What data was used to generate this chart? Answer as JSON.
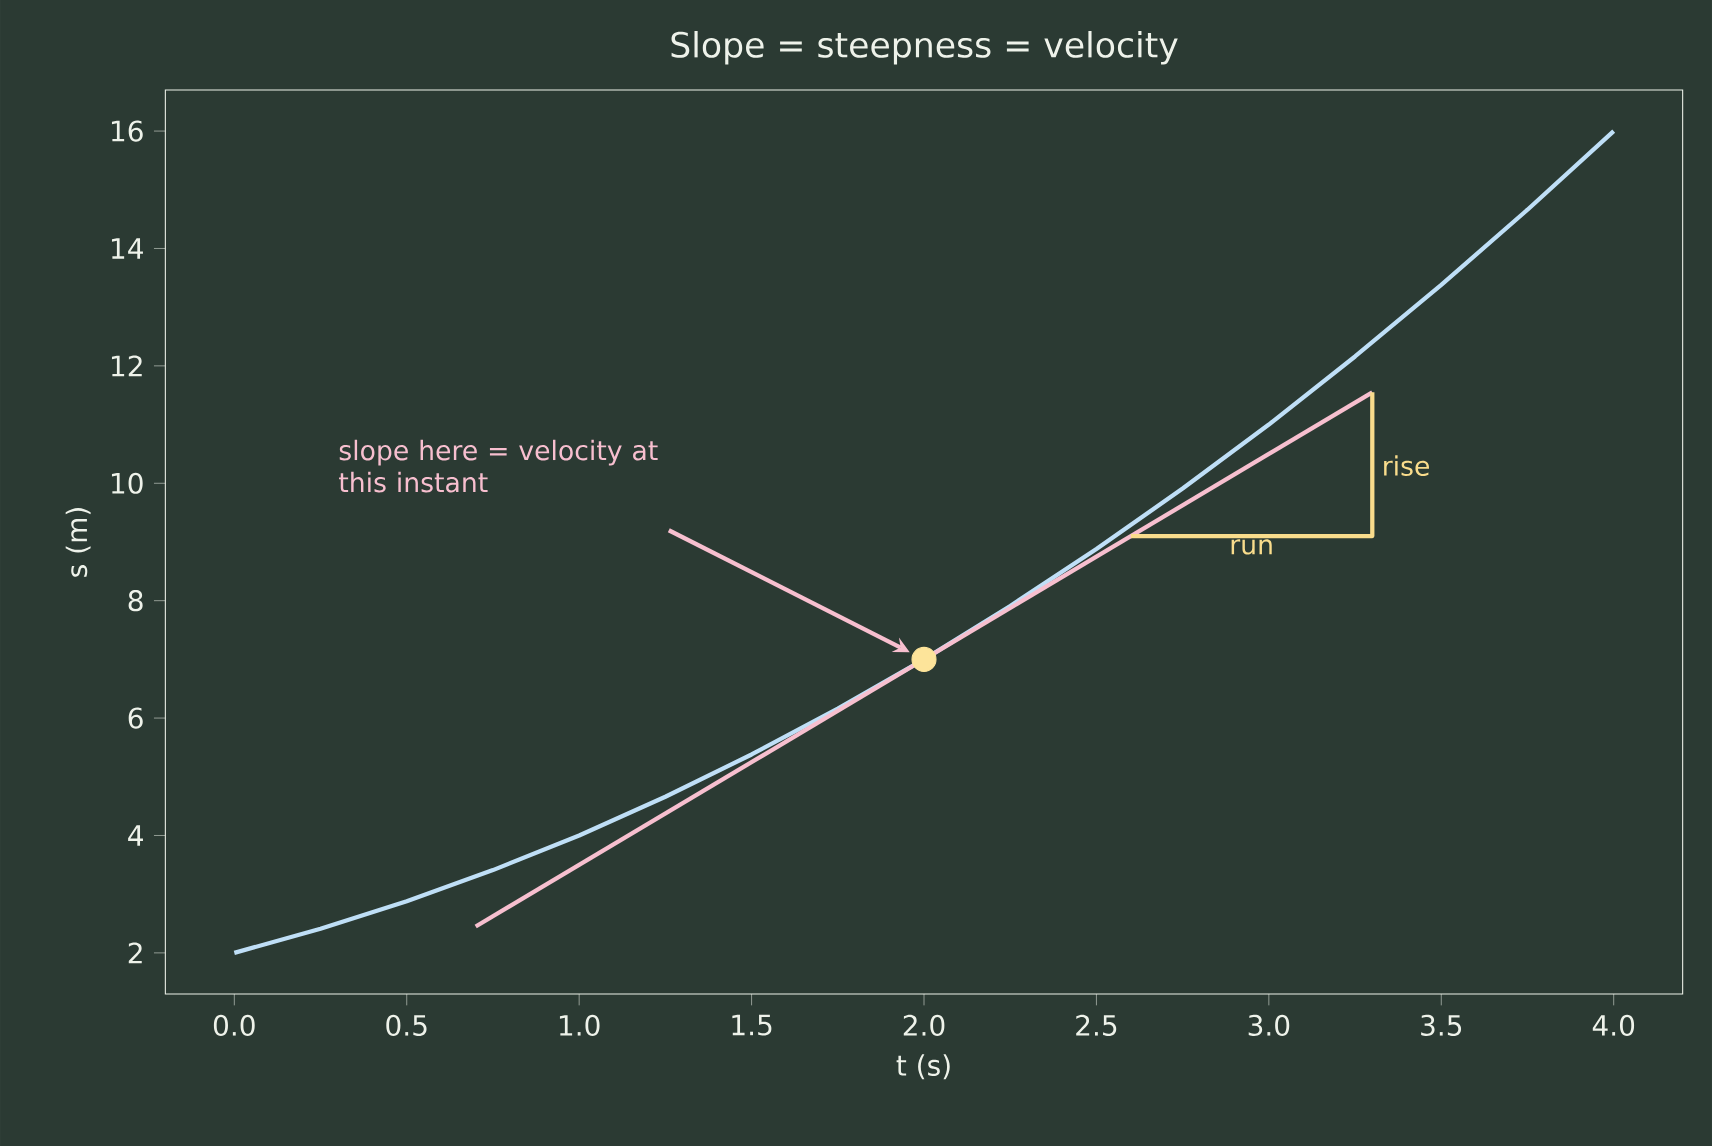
{
  "chart_data": {
    "type": "line",
    "title": "Slope = steepness = velocity",
    "xlabel": "t (s)",
    "ylabel": "s (m)",
    "xlim": [
      -0.2,
      4.2
    ],
    "ylim": [
      1.3,
      16.7
    ],
    "xticks": [
      {
        "value": 0,
        "label": "0.0"
      },
      {
        "value": 0.5,
        "label": "0.5"
      },
      {
        "value": 1,
        "label": "1.0"
      },
      {
        "value": 1.5,
        "label": "1.5"
      },
      {
        "value": 2,
        "label": "2.0"
      },
      {
        "value": 2.5,
        "label": "2.5"
      },
      {
        "value": 3,
        "label": "3.0"
      },
      {
        "value": 3.5,
        "label": "3.5"
      },
      {
        "value": 4,
        "label": "4.0"
      }
    ],
    "yticks": [
      2,
      4,
      6,
      8,
      10,
      12,
      14,
      16
    ],
    "grid": false,
    "series": [
      {
        "color": "#bfdff7",
        "x": [
          0,
          0.25,
          0.5,
          0.75,
          1,
          1.25,
          1.5,
          1.75,
          2,
          2.25,
          2.5,
          2.75,
          3,
          3.25,
          3.5,
          3.75,
          4
        ],
        "values": [
          2,
          2.41,
          2.88,
          3.41,
          4,
          4.66,
          5.38,
          6.16,
          7,
          7.91,
          8.88,
          9.91,
          11,
          12.16,
          13.38,
          14.66,
          16
        ]
      },
      {
        "color": "#f7bfcf",
        "x": [
          0.7,
          3.3
        ],
        "values": [
          2.45,
          11.55
        ]
      },
      {
        "color": "#f9dc8c",
        "x": [
          2.6,
          3.3,
          3.3
        ],
        "values": [
          9.1,
          9.1,
          11.55
        ]
      },
      {
        "type": "scatter",
        "color": "#fde49a",
        "marker": "circle",
        "x": [
          2
        ],
        "values": [
          7
        ]
      }
    ],
    "annotations": [
      "slope here = velocity at this instant",
      {
        "text": "rise",
        "x": 3.3,
        "y": 10.3
      },
      {
        "text": "run",
        "x": 2.95,
        "y": 9.1
      }
    ]
  }
}
